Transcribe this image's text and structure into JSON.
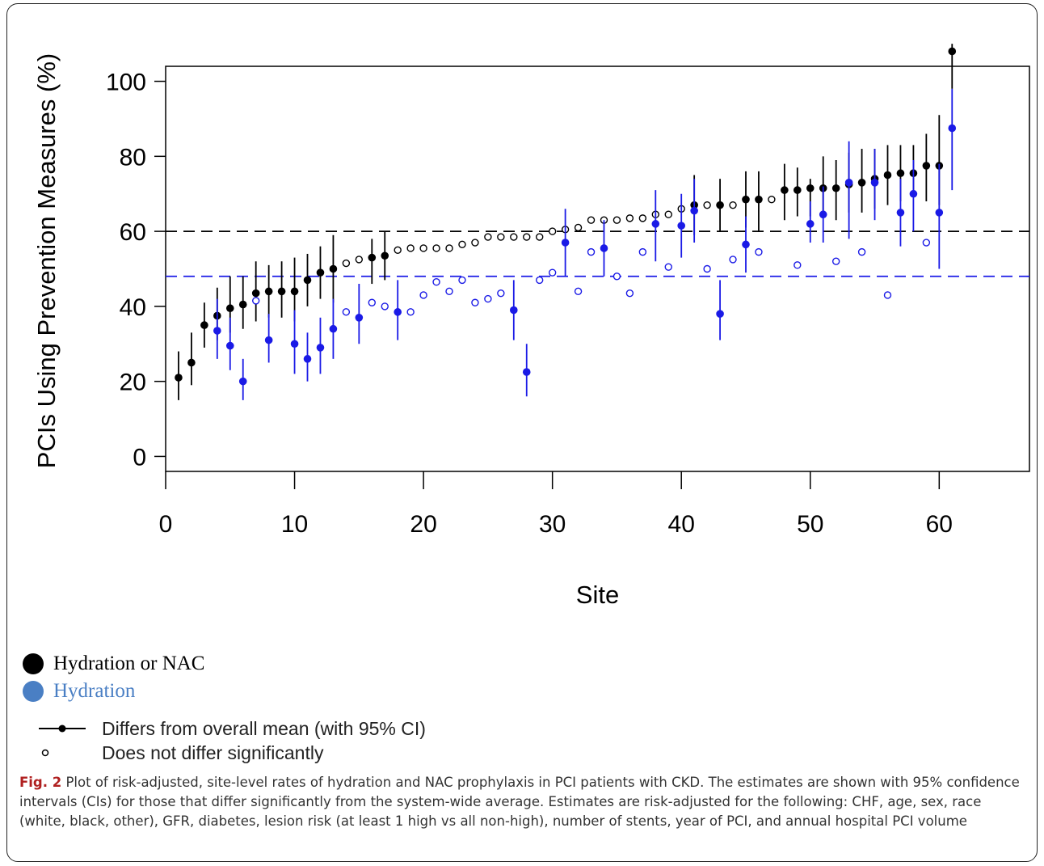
{
  "chart_data": {
    "type": "scatter",
    "xlabel": "Site",
    "ylabel": "PCIs Using Prevention Measures (%)",
    "xlim": [
      0,
      67
    ],
    "ylim": [
      -4,
      104
    ],
    "x_ticks": [
      0,
      10,
      20,
      30,
      40,
      50,
      60
    ],
    "y_ticks": [
      0,
      20,
      40,
      60,
      80,
      100
    ],
    "reference_lines": [
      {
        "series": "Hydration or NAC",
        "y": 60,
        "color": "#000000",
        "style": "dashed"
      },
      {
        "series": "Hydration",
        "y": 48,
        "color": "#1a1ae6",
        "style": "dashed"
      }
    ],
    "series": [
      {
        "name": "Hydration or NAC",
        "color": "#000000",
        "points": [
          {
            "x": 1,
            "y": 21,
            "lo": 15,
            "hi": 28,
            "sig": true
          },
          {
            "x": 2,
            "y": 25,
            "lo": 19,
            "hi": 33,
            "sig": true
          },
          {
            "x": 3,
            "y": 35,
            "lo": 29,
            "hi": 41,
            "sig": true
          },
          {
            "x": 4,
            "y": 37.5,
            "lo": 31,
            "hi": 45,
            "sig": true
          },
          {
            "x": 5,
            "y": 39.5,
            "lo": 33,
            "hi": 48,
            "sig": true
          },
          {
            "x": 6,
            "y": 40.5,
            "lo": 34,
            "hi": 48,
            "sig": true
          },
          {
            "x": 7,
            "y": 43.5,
            "lo": 36,
            "hi": 52,
            "sig": true
          },
          {
            "x": 8,
            "y": 44,
            "lo": 37,
            "hi": 51,
            "sig": true
          },
          {
            "x": 9,
            "y": 44,
            "lo": 37,
            "hi": 52,
            "sig": true
          },
          {
            "x": 10,
            "y": 44,
            "lo": 36,
            "hi": 53,
            "sig": true
          },
          {
            "x": 11,
            "y": 47,
            "lo": 40,
            "hi": 54,
            "sig": true
          },
          {
            "x": 12,
            "y": 49,
            "lo": 42,
            "hi": 56,
            "sig": true
          },
          {
            "x": 13,
            "y": 50,
            "lo": 41,
            "hi": 59,
            "sig": true
          },
          {
            "x": 14,
            "y": 51.5,
            "sig": false
          },
          {
            "x": 15,
            "y": 52.5,
            "sig": false
          },
          {
            "x": 16,
            "y": 53,
            "lo": 46,
            "hi": 58,
            "sig": true
          },
          {
            "x": 17,
            "y": 53.5,
            "lo": 47,
            "hi": 60,
            "sig": true
          },
          {
            "x": 18,
            "y": 55,
            "sig": false
          },
          {
            "x": 19,
            "y": 55.5,
            "sig": false
          },
          {
            "x": 20,
            "y": 55.5,
            "sig": false
          },
          {
            "x": 21,
            "y": 55.5,
            "sig": false
          },
          {
            "x": 22,
            "y": 55.5,
            "sig": false
          },
          {
            "x": 23,
            "y": 56.5,
            "sig": false
          },
          {
            "x": 24,
            "y": 57,
            "sig": false
          },
          {
            "x": 25,
            "y": 58.5,
            "sig": false
          },
          {
            "x": 26,
            "y": 58.5,
            "sig": false
          },
          {
            "x": 27,
            "y": 58.5,
            "sig": false
          },
          {
            "x": 28,
            "y": 58.5,
            "sig": false
          },
          {
            "x": 29,
            "y": 58.5,
            "sig": false
          },
          {
            "x": 30,
            "y": 60,
            "sig": false
          },
          {
            "x": 31,
            "y": 60.5,
            "sig": false
          },
          {
            "x": 32,
            "y": 61,
            "sig": false
          },
          {
            "x": 33,
            "y": 63,
            "sig": false
          },
          {
            "x": 34,
            "y": 63,
            "sig": false
          },
          {
            "x": 35,
            "y": 63,
            "sig": false
          },
          {
            "x": 36,
            "y": 63.5,
            "sig": false
          },
          {
            "x": 37,
            "y": 63.5,
            "sig": false
          },
          {
            "x": 38,
            "y": 64.5,
            "sig": false
          },
          {
            "x": 39,
            "y": 64.5,
            "sig": false
          },
          {
            "x": 40,
            "y": 66,
            "sig": false
          },
          {
            "x": 41,
            "y": 67,
            "lo": 59,
            "hi": 75,
            "sig": true
          },
          {
            "x": 42,
            "y": 67,
            "sig": false
          },
          {
            "x": 43,
            "y": 67,
            "lo": 60,
            "hi": 74,
            "sig": true
          },
          {
            "x": 44,
            "y": 67,
            "sig": false
          },
          {
            "x": 45,
            "y": 68.5,
            "lo": 61,
            "hi": 76,
            "sig": true
          },
          {
            "x": 46,
            "y": 68.5,
            "lo": 60,
            "hi": 76,
            "sig": true
          },
          {
            "x": 47,
            "y": 68.5,
            "sig": false
          },
          {
            "x": 48,
            "y": 71,
            "lo": 63,
            "hi": 78,
            "sig": true
          },
          {
            "x": 49,
            "y": 71,
            "lo": 64,
            "hi": 77,
            "sig": true
          },
          {
            "x": 50,
            "y": 71.5,
            "lo": 64,
            "hi": 74,
            "sig": true
          },
          {
            "x": 51,
            "y": 71.5,
            "lo": 64,
            "hi": 80,
            "sig": true
          },
          {
            "x": 52,
            "y": 71.5,
            "lo": 63,
            "hi": 79,
            "sig": true
          },
          {
            "x": 53,
            "y": 72.5,
            "lo": 65,
            "hi": 81,
            "sig": true
          },
          {
            "x": 54,
            "y": 73,
            "lo": 65,
            "hi": 82,
            "sig": true
          },
          {
            "x": 55,
            "y": 74,
            "lo": 66,
            "hi": 82,
            "sig": true
          },
          {
            "x": 56,
            "y": 75,
            "lo": 67,
            "hi": 83,
            "sig": true
          },
          {
            "x": 57,
            "y": 75.5,
            "lo": 68,
            "hi": 83,
            "sig": true
          },
          {
            "x": 58,
            "y": 75.5,
            "lo": 69,
            "hi": 83,
            "sig": true
          },
          {
            "x": 59,
            "y": 77.5,
            "lo": 68,
            "hi": 86,
            "sig": true
          },
          {
            "x": 60,
            "y": 77.5,
            "lo": 67,
            "hi": 91,
            "sig": true
          },
          {
            "x": 61,
            "y": 108,
            "lo": 98,
            "hi": 110,
            "sig": true
          }
        ]
      },
      {
        "name": "Hydration",
        "color": "#1a1ae6",
        "points": [
          {
            "x": 4,
            "y": 33.5,
            "lo": 26,
            "hi": 42,
            "sig": true
          },
          {
            "x": 5,
            "y": 29.5,
            "lo": 23,
            "hi": 37,
            "sig": true
          },
          {
            "x": 6,
            "y": 20,
            "lo": 15,
            "hi": 26,
            "sig": true
          },
          {
            "x": 7,
            "y": 41.5,
            "sig": false
          },
          {
            "x": 8,
            "y": 31,
            "lo": 25,
            "hi": 38,
            "sig": true
          },
          {
            "x": 10,
            "y": 30,
            "lo": 22,
            "hi": 39,
            "sig": true
          },
          {
            "x": 11,
            "y": 26,
            "lo": 20,
            "hi": 33,
            "sig": true
          },
          {
            "x": 12,
            "y": 29,
            "lo": 22,
            "hi": 37,
            "sig": true
          },
          {
            "x": 13,
            "y": 34,
            "lo": 26,
            "hi": 42,
            "sig": true
          },
          {
            "x": 14,
            "y": 38.5,
            "sig": false
          },
          {
            "x": 15,
            "y": 37,
            "lo": 30,
            "hi": 46,
            "sig": true
          },
          {
            "x": 16,
            "y": 41,
            "sig": false
          },
          {
            "x": 17,
            "y": 40,
            "sig": false
          },
          {
            "x": 18,
            "y": 38.5,
            "lo": 31,
            "hi": 47,
            "sig": true
          },
          {
            "x": 19,
            "y": 38.5,
            "sig": false
          },
          {
            "x": 20,
            "y": 43,
            "sig": false
          },
          {
            "x": 21,
            "y": 46.5,
            "sig": false
          },
          {
            "x": 22,
            "y": 44,
            "sig": false
          },
          {
            "x": 23,
            "y": 47,
            "sig": false
          },
          {
            "x": 24,
            "y": 41,
            "sig": false
          },
          {
            "x": 25,
            "y": 42,
            "sig": false
          },
          {
            "x": 26,
            "y": 43.5,
            "sig": false
          },
          {
            "x": 27,
            "y": 39,
            "lo": 31,
            "hi": 47,
            "sig": true
          },
          {
            "x": 28,
            "y": 22.5,
            "lo": 16,
            "hi": 30,
            "sig": true
          },
          {
            "x": 29,
            "y": 47,
            "sig": false
          },
          {
            "x": 30,
            "y": 49,
            "sig": false
          },
          {
            "x": 31,
            "y": 57,
            "lo": 48,
            "hi": 66,
            "sig": true
          },
          {
            "x": 32,
            "y": 44,
            "sig": false
          },
          {
            "x": 33,
            "y": 54.5,
            "sig": false
          },
          {
            "x": 34,
            "y": 55.5,
            "lo": 48,
            "hi": 63,
            "sig": true
          },
          {
            "x": 35,
            "y": 48,
            "sig": false
          },
          {
            "x": 36,
            "y": 43.5,
            "sig": false
          },
          {
            "x": 37,
            "y": 54.5,
            "sig": false
          },
          {
            "x": 38,
            "y": 62,
            "lo": 52,
            "hi": 71,
            "sig": true
          },
          {
            "x": 39,
            "y": 50.5,
            "sig": false
          },
          {
            "x": 40,
            "y": 61.5,
            "lo": 53,
            "hi": 70,
            "sig": true
          },
          {
            "x": 41,
            "y": 65.5,
            "lo": 57,
            "hi": 74,
            "sig": true
          },
          {
            "x": 42,
            "y": 50,
            "sig": false
          },
          {
            "x": 43,
            "y": 38,
            "lo": 31,
            "hi": 47,
            "sig": true
          },
          {
            "x": 44,
            "y": 52.5,
            "sig": false
          },
          {
            "x": 45,
            "y": 56.5,
            "lo": 49,
            "hi": 64,
            "sig": true
          },
          {
            "x": 46,
            "y": 54.5,
            "sig": false
          },
          {
            "x": 49,
            "y": 51,
            "sig": false
          },
          {
            "x": 50,
            "y": 62,
            "lo": 57,
            "hi": 68,
            "sig": true
          },
          {
            "x": 51,
            "y": 64.5,
            "lo": 57,
            "hi": 72,
            "sig": true
          },
          {
            "x": 52,
            "y": 52,
            "sig": false
          },
          {
            "x": 53,
            "y": 73,
            "lo": 58,
            "hi": 84,
            "sig": true
          },
          {
            "x": 54,
            "y": 54.5,
            "sig": false
          },
          {
            "x": 55,
            "y": 73,
            "lo": 63,
            "hi": 82,
            "sig": true
          },
          {
            "x": 56,
            "y": 43,
            "sig": false
          },
          {
            "x": 57,
            "y": 65,
            "lo": 56,
            "hi": 74,
            "sig": true
          },
          {
            "x": 58,
            "y": 70,
            "lo": 60,
            "hi": 79,
            "sig": true
          },
          {
            "x": 59,
            "y": 57,
            "sig": false
          },
          {
            "x": 60,
            "y": 65,
            "lo": 50,
            "hi": 78,
            "sig": true
          },
          {
            "x": 61,
            "y": 87.5,
            "lo": 71,
            "hi": 98,
            "sig": true
          }
        ]
      }
    ]
  },
  "legend": {
    "items": [
      {
        "label": "Hydration or NAC",
        "color": "#000000"
      },
      {
        "label": "Hydration",
        "color": "#4a7fc4"
      }
    ],
    "marker_items": [
      {
        "label": "Differs from overall mean (with 95% CI)"
      },
      {
        "label": "Does not differ significantly"
      }
    ]
  },
  "caption": {
    "label": "Fig. 2",
    "text": "Plot of risk-adjusted, site-level rates of hydration and NAC prophylaxis in PCI patients with CKD. The estimates are shown with 95% confidence intervals (CIs) for those that differ significantly from the system-wide average. Estimates are risk-adjusted for the following: CHF, age, sex, race (white, black, other), GFR, diabetes, lesion risk (at least 1 high vs all non-high), number of stents, year of PCI, and annual hospital PCI volume"
  }
}
